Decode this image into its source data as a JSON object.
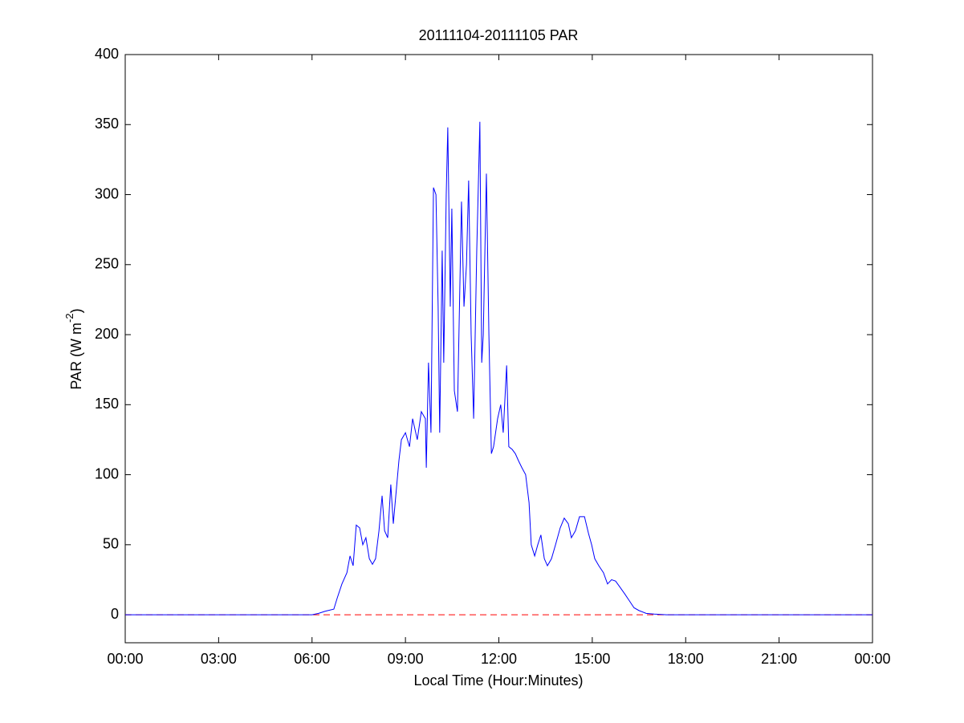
{
  "chart_data": {
    "type": "line",
    "title": "20111104-20111105 PAR",
    "xlabel": "Local Time (Hour:Minutes)",
    "ylabel": {
      "text": "PAR (W m",
      "superscript": "-2",
      "suffix": ")"
    },
    "xlim": [
      0,
      24
    ],
    "ylim": [
      -20,
      400
    ],
    "xticks": [
      {
        "value": 0,
        "label": "00:00"
      },
      {
        "value": 3,
        "label": "03:00"
      },
      {
        "value": 6,
        "label": "06:00"
      },
      {
        "value": 9,
        "label": "09:00"
      },
      {
        "value": 12,
        "label": "12:00"
      },
      {
        "value": 15,
        "label": "15:00"
      },
      {
        "value": 18,
        "label": "18:00"
      },
      {
        "value": 21,
        "label": "21:00"
      },
      {
        "value": 24,
        "label": "00:00"
      }
    ],
    "yticks": [
      0,
      50,
      100,
      150,
      200,
      250,
      300,
      350,
      400
    ],
    "grid": false,
    "reference_line": {
      "value": 0,
      "color": "#ff0000",
      "style": "dashed"
    },
    "series": [
      {
        "color": "#0000ff",
        "x": [
          0,
          6.0,
          6.21,
          6.42,
          6.7,
          6.81,
          6.96,
          7.12,
          7.22,
          7.32,
          7.42,
          7.53,
          7.63,
          7.73,
          7.84,
          7.94,
          8.04,
          8.15,
          8.25,
          8.33,
          8.43,
          8.53,
          8.61,
          8.71,
          8.79,
          8.87,
          9.0,
          9.13,
          9.23,
          9.38,
          9.51,
          9.64,
          9.67,
          9.74,
          9.82,
          9.9,
          9.98,
          10.05,
          10.1,
          10.18,
          10.23,
          10.31,
          10.36,
          10.44,
          10.49,
          10.57,
          10.67,
          10.8,
          10.88,
          10.96,
          11.03,
          11.11,
          11.19,
          11.29,
          11.39,
          11.45,
          11.5,
          11.6,
          11.68,
          11.76,
          11.83,
          11.96,
          12.06,
          12.14,
          12.25,
          12.32,
          12.43,
          12.53,
          12.63,
          12.74,
          12.86,
          12.97,
          13.04,
          13.15,
          13.25,
          13.35,
          13.46,
          13.56,
          13.69,
          13.82,
          13.97,
          14.1,
          14.23,
          14.33,
          14.46,
          14.59,
          14.75,
          14.88,
          14.98,
          15.08,
          15.21,
          15.36,
          15.49,
          15.62,
          15.75,
          15.88,
          16.04,
          16.19,
          16.34,
          16.5,
          16.73,
          16.99,
          17.38,
          24
        ],
        "values": [
          0,
          0,
          1,
          2.5,
          4,
          12,
          22,
          30,
          42,
          35,
          64,
          62,
          50,
          55,
          40,
          36,
          40,
          60,
          85,
          60,
          55,
          93,
          65,
          90,
          110,
          125,
          130,
          120,
          140,
          125,
          145,
          140,
          105,
          180,
          130,
          305,
          300,
          220,
          130,
          260,
          180,
          300,
          348,
          220,
          290,
          160,
          145,
          295,
          220,
          250,
          310,
          200,
          140,
          260,
          352,
          180,
          200,
          315,
          200,
          115,
          120,
          140,
          150,
          130,
          178,
          120,
          118,
          115,
          110,
          105,
          100,
          80,
          50,
          42,
          50,
          57,
          40,
          35,
          40,
          50,
          62,
          69,
          65,
          55,
          60,
          70,
          70,
          58,
          50,
          40,
          35,
          30,
          22,
          25,
          24,
          20,
          15,
          10,
          5,
          3,
          1,
          0.5,
          0,
          0
        ]
      }
    ]
  }
}
